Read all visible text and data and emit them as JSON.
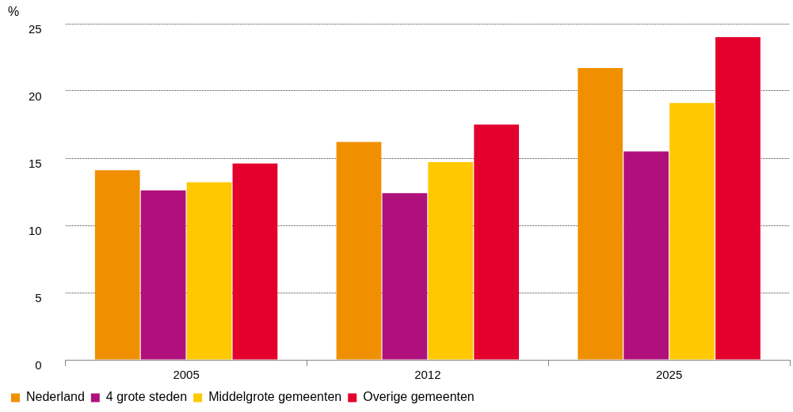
{
  "chart_data": {
    "type": "bar",
    "ylabel": "%",
    "categories": [
      "2005",
      "2012",
      "2025"
    ],
    "series": [
      {
        "name": "Nederland",
        "color": "#f09000",
        "values": [
          14.1,
          16.2,
          21.7
        ]
      },
      {
        "name": "4 grote steden",
        "color": "#b0107c",
        "values": [
          12.6,
          12.4,
          15.5
        ]
      },
      {
        "name": "Middelgrote gemeenten",
        "color": "#ffc800",
        "values": [
          13.2,
          14.7,
          19.1
        ]
      },
      {
        "name": "Overige gemeenten",
        "color": "#e4002c",
        "values": [
          14.6,
          17.5,
          24.0
        ]
      }
    ],
    "ylim": [
      0,
      25
    ],
    "yticks": [
      0,
      5,
      10,
      15,
      20,
      25
    ],
    "grid": "y",
    "legend": "bottom"
  }
}
